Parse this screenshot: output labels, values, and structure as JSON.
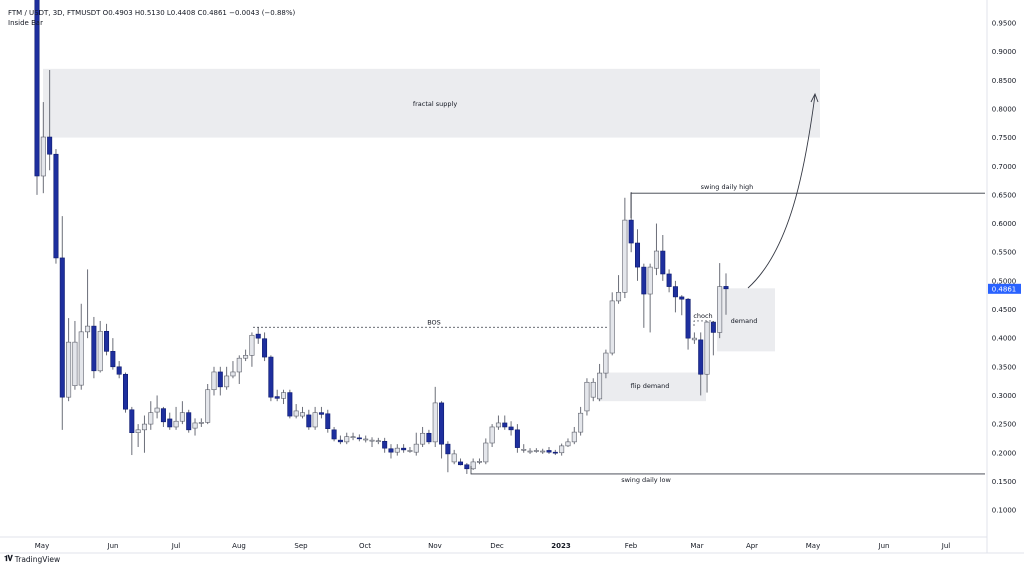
{
  "header": {
    "symbol_line": "FTM / USDT, 3D, FTMUSDT  O0.4903  H0.5130  L0.4408  C0.4861  −0.0043 (−0.88%)",
    "indicator": "Inside Bar"
  },
  "footer": {
    "brand": "TradingView",
    "logo_text": "TV"
  },
  "colors": {
    "bearish": "#1e2f9e",
    "bullish_fill": "#e4e6eb",
    "bullish_border": "#5d606b",
    "wick": "#6b6e78",
    "last_price": "#2962ff",
    "zone": "#ebecef"
  },
  "chart_data": {
    "type": "candlestick",
    "symbol": "FTMUSDT",
    "timeframe": "3D",
    "ylim": [
      0.07,
      0.99
    ],
    "y_ticks": [
      "0.9500",
      "0.9000",
      "0.8500",
      "0.8000",
      "0.7500",
      "0.7000",
      "0.6500",
      "0.6000",
      "0.5500",
      "0.5000",
      "0.4500",
      "0.4000",
      "0.3500",
      "0.3000",
      "0.2500",
      "0.2000",
      "0.1500",
      "0.1000"
    ],
    "x_ticks": [
      "May",
      "Jun",
      "Jul",
      "Aug",
      "Sep",
      "Oct",
      "Nov",
      "Dec",
      "2023",
      "Feb",
      "Mar",
      "Apr",
      "May",
      "Jun",
      "Jul"
    ],
    "last_price": "0.4861",
    "ohlc": [
      [
        1.0,
        1.05,
        0.65,
        0.683
      ],
      [
        0.683,
        0.812,
        0.653,
        0.751
      ],
      [
        0.751,
        0.868,
        0.693,
        0.721
      ],
      [
        0.721,
        0.73,
        0.53,
        0.54
      ],
      [
        0.54,
        0.613,
        0.24,
        0.297
      ],
      [
        0.297,
        0.435,
        0.29,
        0.393
      ],
      [
        0.317,
        0.43,
        0.31,
        0.393
      ],
      [
        0.318,
        0.46,
        0.31,
        0.411
      ],
      [
        0.411,
        0.52,
        0.4,
        0.421
      ],
      [
        0.421,
        0.437,
        0.33,
        0.343
      ],
      [
        0.343,
        0.43,
        0.34,
        0.412
      ],
      [
        0.412,
        0.425,
        0.37,
        0.377
      ],
      [
        0.377,
        0.4,
        0.345,
        0.35
      ],
      [
        0.35,
        0.36,
        0.33,
        0.337
      ],
      [
        0.337,
        0.34,
        0.27,
        0.276
      ],
      [
        0.275,
        0.28,
        0.196,
        0.235
      ],
      [
        0.235,
        0.25,
        0.21,
        0.24
      ],
      [
        0.24,
        0.265,
        0.2,
        0.25
      ],
      [
        0.25,
        0.29,
        0.24,
        0.27
      ],
      [
        0.271,
        0.3,
        0.26,
        0.278
      ],
      [
        0.277,
        0.28,
        0.245,
        0.254
      ],
      [
        0.259,
        0.27,
        0.24,
        0.245
      ],
      [
        0.245,
        0.28,
        0.24,
        0.255
      ],
      [
        0.255,
        0.29,
        0.25,
        0.27
      ],
      [
        0.27,
        0.275,
        0.235,
        0.24
      ],
      [
        0.243,
        0.26,
        0.23,
        0.252
      ],
      [
        0.252,
        0.26,
        0.245,
        0.253
      ],
      [
        0.253,
        0.32,
        0.25,
        0.31
      ],
      [
        0.31,
        0.35,
        0.3,
        0.341
      ],
      [
        0.341,
        0.35,
        0.3,
        0.315
      ],
      [
        0.315,
        0.35,
        0.31,
        0.334
      ],
      [
        0.334,
        0.36,
        0.33,
        0.341
      ],
      [
        0.341,
        0.37,
        0.32,
        0.365
      ],
      [
        0.365,
        0.38,
        0.36,
        0.37
      ],
      [
        0.37,
        0.41,
        0.35,
        0.405
      ],
      [
        0.407,
        0.419,
        0.39,
        0.4
      ],
      [
        0.399,
        0.41,
        0.36,
        0.367
      ],
      [
        0.367,
        0.37,
        0.29,
        0.297
      ],
      [
        0.298,
        0.31,
        0.29,
        0.295
      ],
      [
        0.295,
        0.31,
        0.285,
        0.305
      ],
      [
        0.305,
        0.31,
        0.26,
        0.264
      ],
      [
        0.264,
        0.285,
        0.26,
        0.273
      ],
      [
        0.264,
        0.28,
        0.26,
        0.27
      ],
      [
        0.266,
        0.275,
        0.24,
        0.245
      ],
      [
        0.245,
        0.28,
        0.24,
        0.27
      ],
      [
        0.27,
        0.28,
        0.26,
        0.267
      ],
      [
        0.268,
        0.275,
        0.235,
        0.242
      ],
      [
        0.24,
        0.245,
        0.22,
        0.224
      ],
      [
        0.222,
        0.23,
        0.215,
        0.219
      ],
      [
        0.219,
        0.235,
        0.215,
        0.228
      ],
      [
        0.227,
        0.235,
        0.222,
        0.228
      ],
      [
        0.226,
        0.232,
        0.22,
        0.225
      ],
      [
        0.224,
        0.23,
        0.218,
        0.224
      ],
      [
        0.222,
        0.227,
        0.21,
        0.222
      ],
      [
        0.221,
        0.226,
        0.215,
        0.221
      ],
      [
        0.22,
        0.226,
        0.2,
        0.208
      ],
      [
        0.207,
        0.215,
        0.19,
        0.201
      ],
      [
        0.201,
        0.215,
        0.195,
        0.208
      ],
      [
        0.208,
        0.215,
        0.2,
        0.205
      ],
      [
        0.204,
        0.21,
        0.2,
        0.204
      ],
      [
        0.201,
        0.235,
        0.195,
        0.215
      ],
      [
        0.215,
        0.245,
        0.21,
        0.234
      ],
      [
        0.234,
        0.24,
        0.215,
        0.219
      ],
      [
        0.219,
        0.315,
        0.21,
        0.287
      ],
      [
        0.287,
        0.29,
        0.19,
        0.215
      ],
      [
        0.215,
        0.22,
        0.166,
        0.198
      ],
      [
        0.184,
        0.205,
        0.18,
        0.198
      ],
      [
        0.184,
        0.19,
        0.178,
        0.179
      ],
      [
        0.179,
        0.182,
        0.163,
        0.172
      ],
      [
        0.172,
        0.19,
        0.17,
        0.184
      ],
      [
        0.184,
        0.19,
        0.18,
        0.185
      ],
      [
        0.184,
        0.225,
        0.18,
        0.217
      ],
      [
        0.217,
        0.25,
        0.21,
        0.245
      ],
      [
        0.245,
        0.265,
        0.24,
        0.252
      ],
      [
        0.252,
        0.265,
        0.24,
        0.245
      ],
      [
        0.245,
        0.255,
        0.23,
        0.24
      ],
      [
        0.24,
        0.25,
        0.2,
        0.209
      ],
      [
        0.205,
        0.215,
        0.2,
        0.206
      ],
      [
        0.203,
        0.208,
        0.198,
        0.203
      ],
      [
        0.203,
        0.208,
        0.2,
        0.204
      ],
      [
        0.203,
        0.207,
        0.198,
        0.203
      ],
      [
        0.204,
        0.21,
        0.198,
        0.201
      ],
      [
        0.201,
        0.205,
        0.196,
        0.2
      ],
      [
        0.2,
        0.216,
        0.195,
        0.212
      ],
      [
        0.212,
        0.225,
        0.21,
        0.219
      ],
      [
        0.219,
        0.245,
        0.215,
        0.236
      ],
      [
        0.236,
        0.28,
        0.23,
        0.269
      ],
      [
        0.273,
        0.33,
        0.265,
        0.323
      ],
      [
        0.297,
        0.33,
        0.29,
        0.323
      ],
      [
        0.294,
        0.355,
        0.29,
        0.339
      ],
      [
        0.339,
        0.38,
        0.33,
        0.374
      ],
      [
        0.374,
        0.48,
        0.37,
        0.465
      ],
      [
        0.465,
        0.51,
        0.46,
        0.48
      ],
      [
        0.48,
        0.645,
        0.47,
        0.606
      ],
      [
        0.606,
        0.655,
        0.55,
        0.566
      ],
      [
        0.566,
        0.59,
        0.5,
        0.524
      ],
      [
        0.524,
        0.53,
        0.418,
        0.477
      ],
      [
        0.477,
        0.53,
        0.41,
        0.524
      ],
      [
        0.522,
        0.6,
        0.51,
        0.552
      ],
      [
        0.552,
        0.58,
        0.5,
        0.512
      ],
      [
        0.512,
        0.52,
        0.48,
        0.49
      ],
      [
        0.49,
        0.5,
        0.445,
        0.472
      ],
      [
        0.472,
        0.475,
        0.44,
        0.468
      ],
      [
        0.468,
        0.47,
        0.38,
        0.4
      ],
      [
        0.397,
        0.41,
        0.39,
        0.4
      ],
      [
        0.397,
        0.41,
        0.3,
        0.337
      ],
      [
        0.337,
        0.43,
        0.305,
        0.428
      ],
      [
        0.428,
        0.43,
        0.37,
        0.41
      ],
      [
        0.41,
        0.531,
        0.4,
        0.49
      ],
      [
        0.4903,
        0.513,
        0.4408,
        0.4861
      ]
    ],
    "annotations": {
      "fractal_supply": {
        "label": "fractal supply",
        "top": 0.87,
        "bottom": 0.75
      },
      "swing_high": {
        "label": "swing daily high",
        "price": 0.653
      },
      "bos": {
        "label": "BOS",
        "price": 0.419
      },
      "flip_demand": {
        "label": "flip demand",
        "top": 0.34,
        "bottom": 0.29
      },
      "demand": {
        "label": "demand",
        "top": 0.487,
        "bottom": 0.377
      },
      "choch": {
        "label": "choch",
        "price": 0.43
      },
      "swing_low": {
        "label": "swing daily low",
        "price": 0.163
      }
    }
  }
}
